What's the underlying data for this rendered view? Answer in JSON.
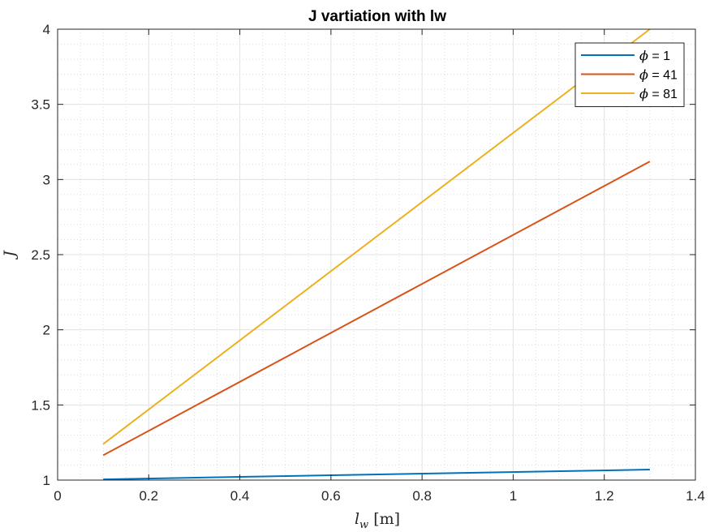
{
  "chart_data": {
    "type": "line",
    "title": "J vartiation with lw",
    "xlabel": {
      "var": "l",
      "sub": "w",
      "unit": "[m]"
    },
    "ylabel": "J",
    "xlim": [
      0,
      1.4
    ],
    "ylim": [
      1,
      4
    ],
    "xticks": [
      0,
      0.2,
      0.4,
      0.6,
      0.8,
      1,
      1.2,
      1.4
    ],
    "xtick_labels": [
      "0",
      "0.2",
      "0.4",
      "0.6",
      "0.8",
      "1",
      "1.2",
      "1.4"
    ],
    "yticks": [
      1,
      1.5,
      2,
      2.5,
      3,
      3.5,
      4
    ],
    "ytick_labels": [
      "1",
      "1.5",
      "2",
      "2.5",
      "3",
      "3.5",
      "4"
    ],
    "grid": true,
    "minor_grid": true,
    "legend_position": "top-right",
    "series": [
      {
        "name": "ϕ = 1",
        "phi_symbol": "ϕ",
        "phi_text": " = 1",
        "color": "#0072BD",
        "x": [
          0.1,
          1.3
        ],
        "y": [
          1.005,
          1.07
        ]
      },
      {
        "name": "ϕ = 41",
        "phi_symbol": "ϕ",
        "phi_text": " = 41",
        "color": "#D95319",
        "x": [
          0.1,
          1.3
        ],
        "y": [
          1.165,
          3.12
        ]
      },
      {
        "name": "ϕ = 81",
        "phi_symbol": "ϕ",
        "phi_text": " = 81",
        "color": "#EDB120",
        "x": [
          0.1,
          1.3
        ],
        "y": [
          1.24,
          4.0
        ]
      }
    ]
  }
}
